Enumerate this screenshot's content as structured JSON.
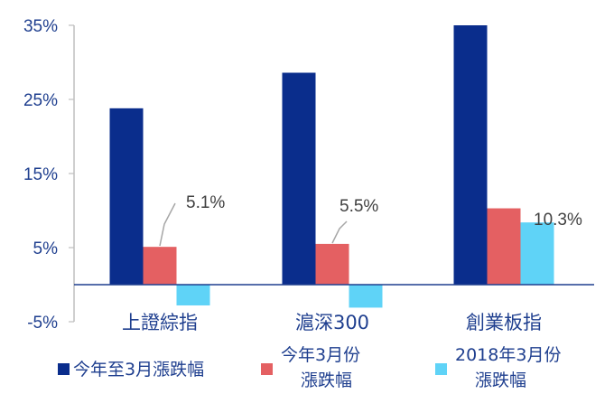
{
  "chart_data": {
    "type": "bar",
    "categories": [
      "上證綜指",
      "滬深300",
      "創業板指"
    ],
    "series": [
      {
        "name": "今年至3月漲跌幅",
        "values": [
          23.8,
          28.6,
          35.0
        ],
        "color": "#0a2d8c"
      },
      {
        "name": "今年3月份漲跌幅",
        "values": [
          5.1,
          5.5,
          10.3
        ],
        "color": "#e46062"
      },
      {
        "name": "2018年3月份漲跌幅",
        "values": [
          -2.8,
          -3.1,
          8.4
        ],
        "color": "#5fd3f7"
      }
    ],
    "y_ticks": [
      "35%",
      "25%",
      "15%",
      "5%",
      "-5%"
    ],
    "y_tick_values": [
      35,
      25,
      15,
      5,
      -5
    ],
    "ylim": [
      -5,
      35
    ],
    "data_labels": [
      "5.1%",
      "5.5%",
      "10.3%"
    ],
    "legend": {
      "position": "bottom",
      "entries": [
        {
          "line1": "今年至3月漲跌幅",
          "line2": ""
        },
        {
          "line1": "今年3月份",
          "line2": "漲跌幅"
        },
        {
          "line1": "2018年3月份",
          "line2": "漲跌幅"
        }
      ]
    },
    "grid": false
  }
}
